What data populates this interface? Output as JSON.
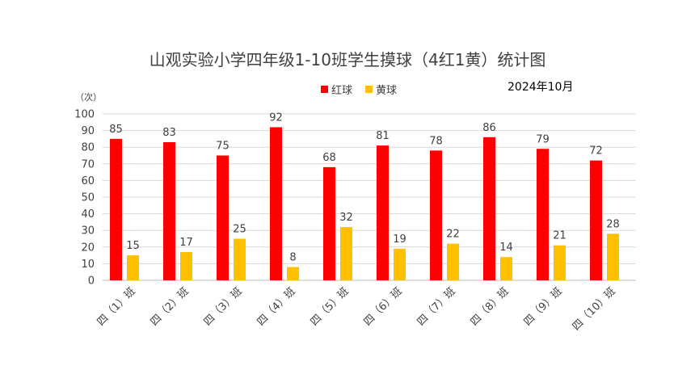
{
  "chart_data": {
    "type": "bar",
    "title": "山观实验小学四年级1-10班学生摸球（4红1黄）统计图",
    "date_note": "2024年10月",
    "ylabel": "（次）",
    "xlabel": "",
    "ylim": [
      0,
      100
    ],
    "y_ticks": [
      0,
      10,
      20,
      30,
      40,
      50,
      60,
      70,
      80,
      90,
      100
    ],
    "grid": true,
    "legend_position": "top",
    "categories": [
      "四（1）班",
      "四（2）班",
      "四（3）班",
      "四（4）班",
      "四（5）班",
      "四（6）班",
      "四（7）班",
      "四（8）班",
      "四（9）班",
      "四（10）班"
    ],
    "series": [
      {
        "name": "红球",
        "color": "#ff0000",
        "values": [
          85,
          83,
          75,
          92,
          68,
          81,
          78,
          86,
          79,
          72
        ]
      },
      {
        "name": "黄球",
        "color": "#ffc000",
        "values": [
          15,
          17,
          25,
          8,
          32,
          19,
          22,
          14,
          21,
          28
        ]
      }
    ]
  }
}
